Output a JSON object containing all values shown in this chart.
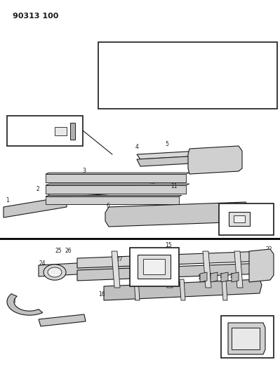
{
  "page_id": "90313 100",
  "bg_color": "#ffffff",
  "line_color": "#1a1a1a",
  "text_color": "#1a1a1a",
  "fig_width": 3.99,
  "fig_height": 5.33,
  "dpi": 100
}
